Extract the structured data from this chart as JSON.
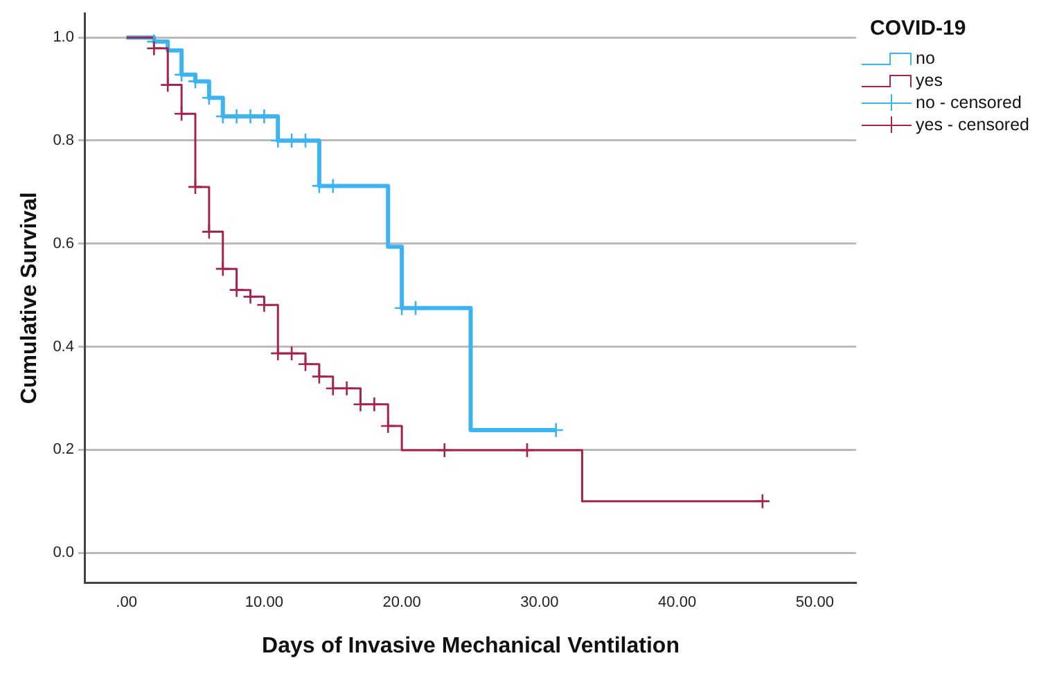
{
  "chart_data": {
    "type": "step",
    "xlabel": "Days of Invasive Mechanical Ventilation",
    "ylabel": "Cumulative Survival",
    "legend_title": "COVID-19",
    "legend": "top right",
    "grid": "y",
    "xlim": [
      -3,
      53
    ],
    "xticks": [
      {
        "value": 0,
        "label": ".00"
      },
      {
        "value": 10,
        "label": "10.00"
      },
      {
        "value": 20,
        "label": "20.00"
      },
      {
        "value": 30,
        "label": "30.00"
      },
      {
        "value": 40,
        "label": "40.00"
      },
      {
        "value": 50,
        "label": "50.00"
      }
    ],
    "ylim": [
      -0.058,
      1.047
    ],
    "yticks": [
      {
        "value": 0,
        "label": "0.0"
      },
      {
        "value": 0.2,
        "label": "0.2"
      },
      {
        "value": 0.4,
        "label": "0.4"
      },
      {
        "value": 0.6,
        "label": "0.6"
      },
      {
        "value": 0.8,
        "label": "0.8"
      },
      {
        "value": 1,
        "label": "1.0"
      }
    ],
    "series": [
      {
        "name": "no",
        "color": "#3db4f2",
        "marker": "none",
        "x": [
          0,
          2,
          3,
          4,
          5,
          6,
          7,
          11,
          14,
          19,
          20,
          25,
          31.2
        ],
        "values": [
          1,
          0.992,
          0.975,
          0.928,
          0.915,
          0.883,
          0.847,
          0.8,
          0.712,
          0.594,
          0.475,
          0.238,
          0.238
        ]
      },
      {
        "name": "yes",
        "color": "#a6224f",
        "marker": "none",
        "x": [
          0,
          2,
          3,
          4,
          5,
          6,
          7,
          8,
          9,
          10,
          11,
          13,
          14,
          15,
          17,
          19,
          20,
          33.1,
          46.2
        ],
        "values": [
          1,
          0.979,
          0.908,
          0.852,
          0.71,
          0.623,
          0.551,
          0.51,
          0.497,
          0.481,
          0.387,
          0.366,
          0.342,
          0.319,
          0.288,
          0.246,
          0.199,
          0.1,
          0.1
        ]
      },
      {
        "name": "no - censored",
        "type": "scatter",
        "color": "#3db4f2",
        "marker": "cross",
        "x": [
          2,
          4,
          5,
          6,
          7,
          8,
          9,
          10,
          11,
          12,
          13,
          14,
          15,
          20,
          21,
          31.2
        ],
        "values": [
          0.992,
          0.928,
          0.915,
          0.883,
          0.847,
          0.847,
          0.847,
          0.847,
          0.8,
          0.8,
          0.8,
          0.712,
          0.712,
          0.475,
          0.475,
          0.238
        ]
      },
      {
        "name": "yes - censored",
        "type": "scatter",
        "color": "#a6224f",
        "marker": "cross",
        "x": [
          2,
          3,
          4,
          5,
          6,
          7,
          8,
          9,
          10,
          11,
          12,
          13,
          14,
          15,
          16,
          17,
          18,
          19,
          23.1,
          29.1,
          46.2
        ],
        "values": [
          0.979,
          0.908,
          0.852,
          0.71,
          0.623,
          0.551,
          0.51,
          0.497,
          0.481,
          0.387,
          0.387,
          0.366,
          0.342,
          0.319,
          0.319,
          0.288,
          0.288,
          0.246,
          0.199,
          0.199,
          0.1
        ]
      }
    ]
  }
}
